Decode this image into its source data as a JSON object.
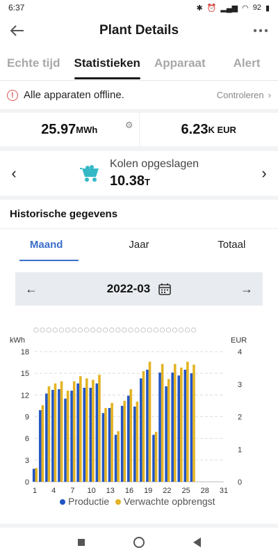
{
  "status": {
    "time": "6:37",
    "battery": "92"
  },
  "header": {
    "title": "Plant Details"
  },
  "tabs": [
    "Echte tijd",
    "Statistieken",
    "Apparaat",
    "Alert"
  ],
  "alert": {
    "text": "Alle apparaten offline.",
    "link": "Controleren"
  },
  "stats": {
    "energy": {
      "value": "25.97",
      "unit": "MWh"
    },
    "income": {
      "value": "6.23",
      "unit": "K EUR"
    }
  },
  "coal": {
    "label": "Kolen opgeslagen",
    "value": "10.38",
    "unit": "T"
  },
  "history": {
    "title": "Historische gegevens",
    "periods": [
      "Maand",
      "Jaar",
      "Totaal"
    ],
    "date": "2022-03"
  },
  "colors": {
    "production": "#2255c4",
    "expected": "#e3b324",
    "accent": "#3a6ec9"
  },
  "chart_data": {
    "type": "bar",
    "ylabel_left": "kWh",
    "ylabel_right": "EUR",
    "y_ticks_left": [
      0,
      3,
      6,
      9,
      12,
      15,
      18
    ],
    "y_ticks_right": [
      0,
      1,
      2,
      3,
      4
    ],
    "ylim_left": [
      0,
      18
    ],
    "ylim_right": [
      0,
      4
    ],
    "x_ticks": [
      1,
      4,
      7,
      10,
      13,
      16,
      19,
      22,
      25,
      28,
      31
    ],
    "x": [
      1,
      2,
      3,
      4,
      5,
      6,
      7,
      8,
      9,
      10,
      11,
      12,
      13,
      14,
      15,
      16,
      17,
      18,
      19,
      20,
      21,
      22,
      23,
      24,
      25,
      26
    ],
    "series": [
      {
        "name": "Productie",
        "values": [
          1.8,
          9.9,
          12.2,
          12.7,
          12.8,
          11.5,
          12.6,
          13.6,
          13.0,
          13.0,
          13.6,
          9.5,
          10.2,
          6.5,
          10.5,
          11.9,
          10.4,
          14.3,
          15.5,
          6.5,
          15.1,
          13.2,
          15.1,
          14.7,
          15.5,
          15.0
        ]
      },
      {
        "name": "Verwachte opbrengst",
        "values": [
          1.9,
          10.6,
          13.2,
          13.6,
          13.9,
          12.6,
          13.9,
          14.6,
          14.3,
          14.1,
          14.8,
          10.2,
          10.9,
          7.0,
          11.2,
          12.8,
          11.1,
          15.3,
          16.6,
          6.9,
          16.3,
          14.2,
          16.3,
          15.8,
          16.6,
          16.2
        ]
      }
    ],
    "legend": [
      "Productie",
      "Verwachte opbrengst"
    ],
    "legend_position": "bottom"
  }
}
